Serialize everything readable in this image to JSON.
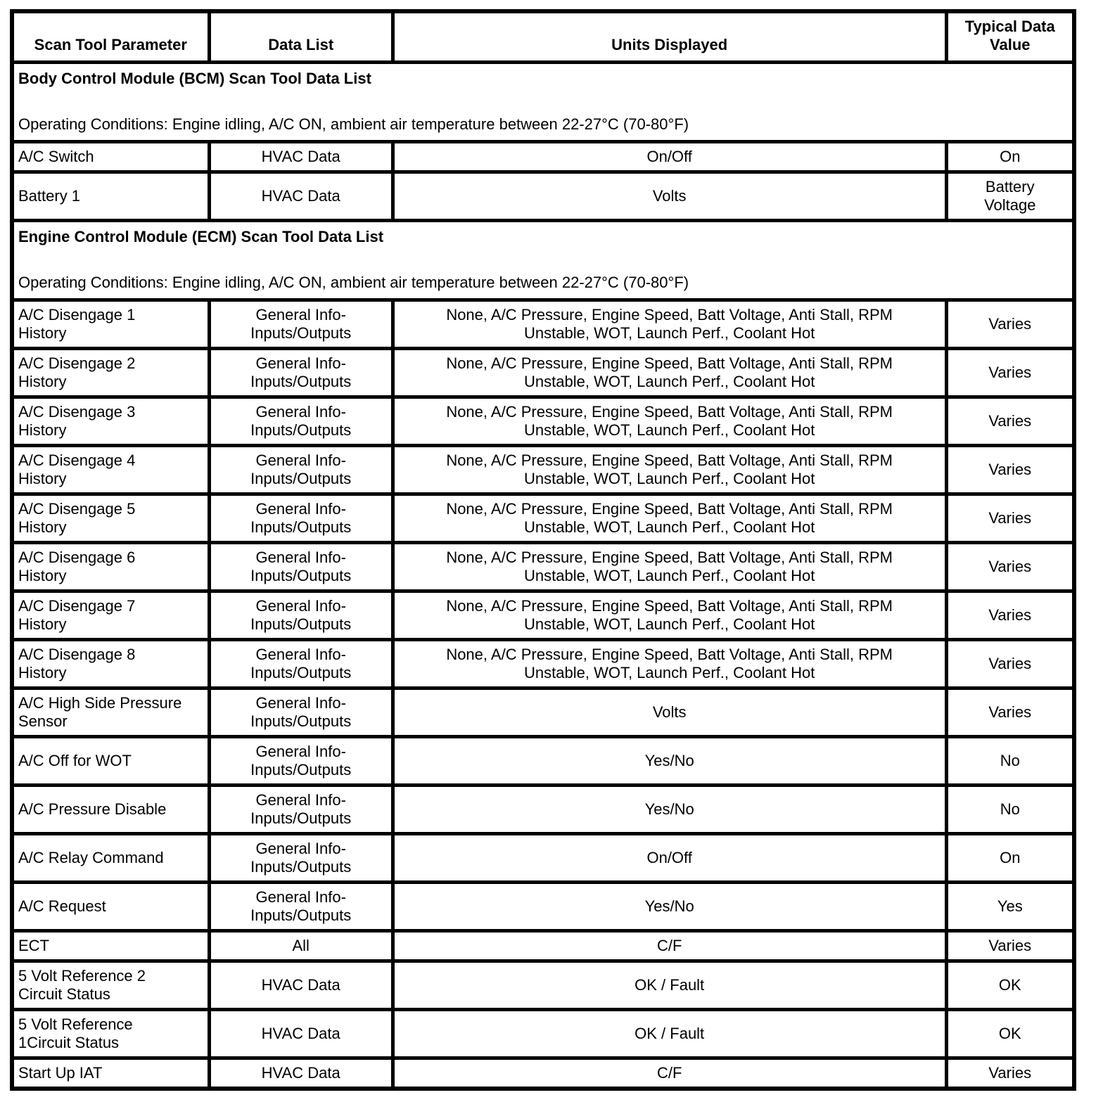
{
  "page": {
    "background_color": "#ffffff",
    "text_color": "#000000",
    "border_color": "#000000"
  },
  "table": {
    "headers": [
      "Scan Tool Parameter",
      "Data List",
      "Units Displayed",
      "Typical Data Value"
    ],
    "sections": [
      {
        "title": "Body Control Module (BCM) Scan Tool Data List",
        "operating_conditions": "Operating Conditions: Engine idling, A/C ON, ambient air temperature between 22-27°C (70-80°F)",
        "rows": [
          {
            "parameter": "A/C Switch",
            "data_list": "HVAC Data",
            "units": "On/Off",
            "value": "On"
          },
          {
            "parameter": "Battery 1",
            "data_list": "HVAC Data",
            "units": "Volts",
            "value": "Battery\nVoltage"
          }
        ]
      },
      {
        "title": "Engine Control Module (ECM) Scan Tool Data List",
        "operating_conditions": "Operating Conditions: Engine idling, A/C ON, ambient air temperature between 22-27°C (70-80°F)",
        "rows": [
          {
            "parameter": "A/C Disengage 1\nHistory",
            "data_list": "General Info-\nInputs/Outputs",
            "units": "None, A/C Pressure, Engine Speed, Batt Voltage, Anti Stall, RPM\nUnstable, WOT, Launch Perf., Coolant Hot",
            "value": "Varies"
          },
          {
            "parameter": "A/C Disengage 2\nHistory",
            "data_list": "General Info-\nInputs/Outputs",
            "units": "None, A/C Pressure, Engine Speed, Batt Voltage, Anti Stall, RPM\nUnstable, WOT, Launch Perf., Coolant Hot",
            "value": "Varies"
          },
          {
            "parameter": "A/C Disengage 3\nHistory",
            "data_list": "General Info-\nInputs/Outputs",
            "units": "None, A/C Pressure, Engine Speed, Batt Voltage, Anti Stall, RPM\nUnstable, WOT, Launch Perf., Coolant Hot",
            "value": "Varies"
          },
          {
            "parameter": "A/C Disengage 4\nHistory",
            "data_list": "General Info-\nInputs/Outputs",
            "units": "None, A/C Pressure, Engine Speed, Batt Voltage, Anti Stall, RPM\nUnstable, WOT, Launch Perf., Coolant Hot",
            "value": "Varies"
          },
          {
            "parameter": "A/C Disengage 5\nHistory",
            "data_list": "General Info-\nInputs/Outputs",
            "units": "None, A/C Pressure, Engine Speed, Batt Voltage, Anti Stall, RPM\nUnstable, WOT, Launch Perf., Coolant Hot",
            "value": "Varies"
          },
          {
            "parameter": "A/C Disengage 6\nHistory",
            "data_list": "General Info-\nInputs/Outputs",
            "units": "None, A/C Pressure, Engine Speed, Batt Voltage, Anti Stall, RPM\nUnstable, WOT, Launch Perf., Coolant Hot",
            "value": "Varies"
          },
          {
            "parameter": "A/C Disengage 7\nHistory",
            "data_list": "General Info-\nInputs/Outputs",
            "units": "None, A/C Pressure, Engine Speed, Batt Voltage, Anti Stall, RPM\nUnstable, WOT, Launch Perf., Coolant Hot",
            "value": "Varies"
          },
          {
            "parameter": "A/C Disengage 8\nHistory",
            "data_list": "General Info-\nInputs/Outputs",
            "units": "None, A/C Pressure, Engine Speed, Batt Voltage, Anti Stall, RPM\nUnstable, WOT, Launch Perf., Coolant Hot",
            "value": "Varies"
          },
          {
            "parameter": "A/C High Side Pressure\nSensor",
            "data_list": "General Info-\nInputs/Outputs",
            "units": "Volts",
            "value": "Varies"
          },
          {
            "parameter": "A/C Off for WOT",
            "data_list": "General Info-\nInputs/Outputs",
            "units": "Yes/No",
            "value": "No"
          },
          {
            "parameter": "A/C Pressure Disable",
            "data_list": "General Info-\nInputs/Outputs",
            "units": "Yes/No",
            "value": "No"
          },
          {
            "parameter": "A/C Relay Command",
            "data_list": "General Info-\nInputs/Outputs",
            "units": "On/Off",
            "value": "On"
          },
          {
            "parameter": "A/C Request",
            "data_list": "General Info-\nInputs/Outputs",
            "units": "Yes/No",
            "value": "Yes"
          },
          {
            "parameter": "ECT",
            "data_list": "All",
            "units": "C/F",
            "value": "Varies"
          },
          {
            "parameter": "5 Volt Reference 2\nCircuit Status",
            "data_list": "HVAC Data",
            "units": "OK / Fault",
            "value": "OK"
          },
          {
            "parameter": "5 Volt Reference\n1Circuit Status",
            "data_list": "HVAC Data",
            "units": "OK / Fault",
            "value": "OK"
          },
          {
            "parameter": "Start Up IAT",
            "data_list": "HVAC Data",
            "units": "C/F",
            "value": "Varies"
          }
        ]
      }
    ]
  }
}
